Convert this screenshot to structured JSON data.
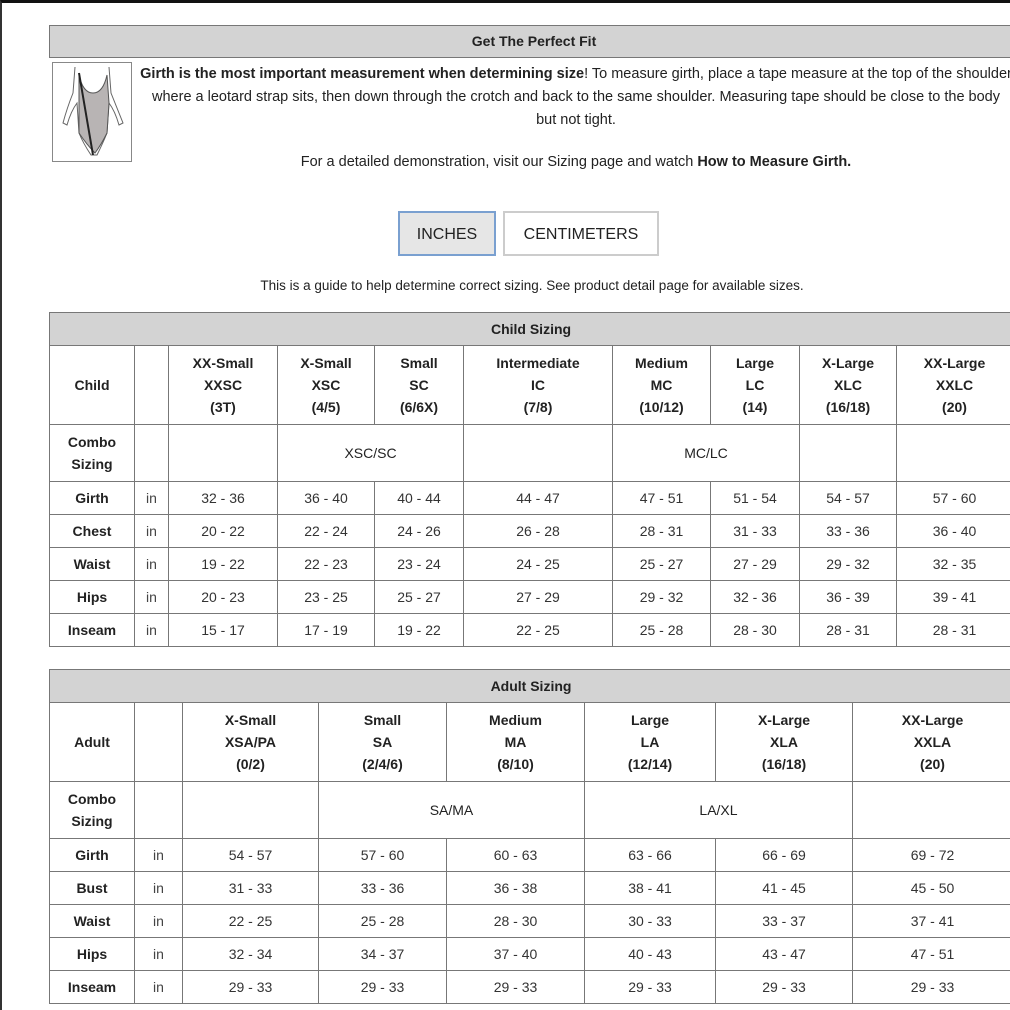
{
  "fit": {
    "title": "Get The Perfect Fit",
    "intro_bold": "Girth is the most important measurement when determining size",
    "intro_rest": "! To measure girth, place a tape measure at the top of the shoulder where a leotard strap sits, then down through the crotch and back to the same shoulder. Measuring tape should be close to the body but not tight.",
    "demo_text": "For a detailed demonstration, visit our Sizing page and watch ",
    "demo_link": "How to Measure Girth.",
    "image_icon": "leotard-girth-illustration"
  },
  "units": {
    "inches": "INCHES",
    "centimeters": "CENTIMETERS",
    "selected": "INCHES",
    "active_border": "#7aa0d0"
  },
  "guide": "This is a guide to help determine correct sizing. See product detail page for available sizes.",
  "child": {
    "title": "Child Sizing",
    "corner": "Child",
    "columns": [
      [
        "XX-Small",
        "XXSC",
        "(3T)"
      ],
      [
        "X-Small",
        "XSC",
        "(4/5)"
      ],
      [
        "Small",
        "SC",
        "(6/6X)"
      ],
      [
        "Intermediate",
        "IC",
        "(7/8)"
      ],
      [
        "Medium",
        "MC",
        "(10/12)"
      ],
      [
        "Large",
        "LC",
        "(14)"
      ],
      [
        "X-Large",
        "XLC",
        "(16/18)"
      ],
      [
        "XX-Large",
        "XXLC",
        "(20)"
      ]
    ],
    "combo_label": "Combo Sizing",
    "combo": [
      {
        "text": "",
        "span": 1
      },
      {
        "text": "XSC/SC",
        "span": 2
      },
      {
        "text": "",
        "span": 1
      },
      {
        "text": "MC/LC",
        "span": 2
      },
      {
        "text": "",
        "span": 1
      },
      {
        "text": "",
        "span": 1
      }
    ],
    "rows": [
      {
        "label": "Girth",
        "unit": "in",
        "values": [
          "32 - 36",
          "36 - 40",
          "40 - 44",
          "44 - 47",
          "47 - 51",
          "51 - 54",
          "54 - 57",
          "57 - 60"
        ]
      },
      {
        "label": "Chest",
        "unit": "in",
        "values": [
          "20 - 22",
          "22 - 24",
          "24 - 26",
          "26 - 28",
          "28 - 31",
          "31 - 33",
          "33 - 36",
          "36 - 40"
        ]
      },
      {
        "label": "Waist",
        "unit": "in",
        "values": [
          "19 - 22",
          "22 - 23",
          "23 - 24",
          "24 - 25",
          "25 - 27",
          "27 - 29",
          "29 - 32",
          "32 - 35"
        ]
      },
      {
        "label": "Hips",
        "unit": "in",
        "values": [
          "20 - 23",
          "23 - 25",
          "25 - 27",
          "27 - 29",
          "29 - 32",
          "32 - 36",
          "36 - 39",
          "39 - 41"
        ]
      },
      {
        "label": "Inseam",
        "unit": "in",
        "values": [
          "15 - 17",
          "17 - 19",
          "19 - 22",
          "22 - 25",
          "25 - 28",
          "28 - 30",
          "28 - 31",
          "28 - 31"
        ]
      }
    ]
  },
  "adult": {
    "title": "Adult Sizing",
    "corner": "Adult",
    "columns": [
      [
        "X-Small",
        "XSA/PA",
        "(0/2)"
      ],
      [
        "Small",
        "SA",
        "(2/4/6)"
      ],
      [
        "Medium",
        "MA",
        "(8/10)"
      ],
      [
        "Large",
        "LA",
        "(12/14)"
      ],
      [
        "X-Large",
        "XLA",
        "(16/18)"
      ],
      [
        "XX-Large",
        "XXLA",
        "(20)"
      ]
    ],
    "combo_label": "Combo Sizing",
    "combo": [
      {
        "text": "",
        "span": 1
      },
      {
        "text": "SA/MA",
        "span": 2
      },
      {
        "text": "LA/XL",
        "span": 2
      },
      {
        "text": "",
        "span": 1
      }
    ],
    "rows": [
      {
        "label": "Girth",
        "unit": "in",
        "values": [
          "54 - 57",
          "57 - 60",
          "60 - 63",
          "63 - 66",
          "66 - 69",
          "69 - 72"
        ]
      },
      {
        "label": "Bust",
        "unit": "in",
        "values": [
          "31 - 33",
          "33 - 36",
          "36 - 38",
          "38 - 41",
          "41 - 45",
          "45 - 50"
        ]
      },
      {
        "label": "Waist",
        "unit": "in",
        "values": [
          "22 - 25",
          "25 - 28",
          "28 - 30",
          "30 - 33",
          "33 - 37",
          "37 - 41"
        ]
      },
      {
        "label": "Hips",
        "unit": "in",
        "values": [
          "32 - 34",
          "34 - 37",
          "37 - 40",
          "40 - 43",
          "43 - 47",
          "47 - 51"
        ]
      },
      {
        "label": "Inseam",
        "unit": "in",
        "values": [
          "29 - 33",
          "29 - 33",
          "29 - 33",
          "29 - 33",
          "29 - 33",
          "29 - 33"
        ]
      }
    ]
  }
}
